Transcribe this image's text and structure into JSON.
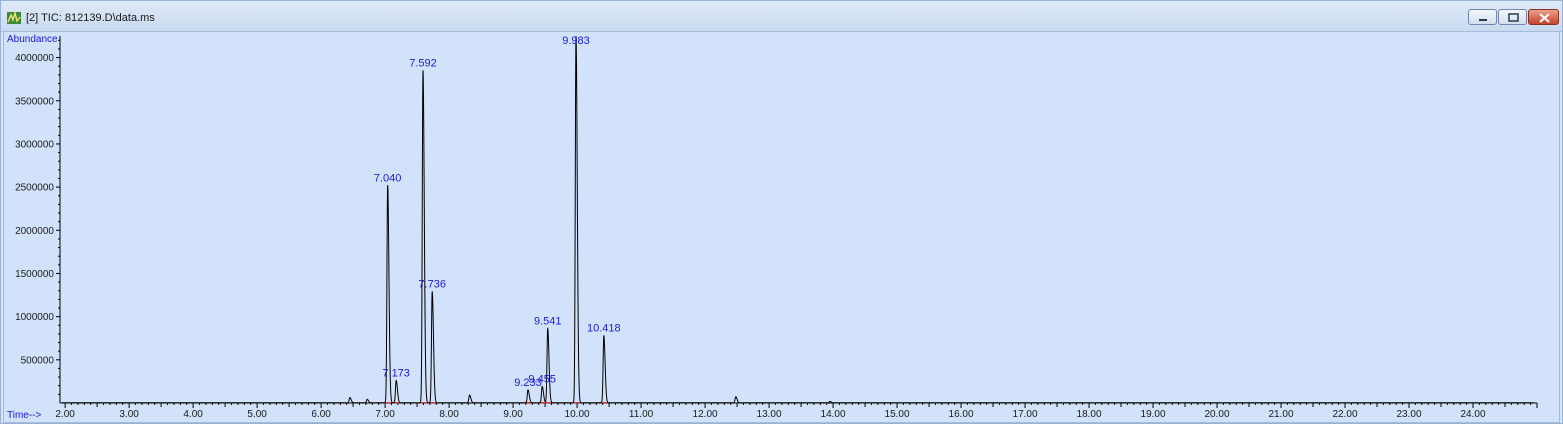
{
  "window": {
    "title": "[2] TIC: 812139.D\\data.ms",
    "icons": {
      "app": "chromatogram-app-icon",
      "minimize": "minimize-icon",
      "maximize": "maximize-icon",
      "close": "close-icon"
    },
    "colors": {
      "plot_background": "#d1e2fa",
      "trace": "#000000",
      "peak_label": "#1b1bd6",
      "baseline_marker": "#e03030"
    }
  },
  "chart_data": {
    "type": "line",
    "ylabel": "Abundance",
    "xlabel": "Time-->",
    "xlim": [
      1.92,
      25.0
    ],
    "ylim": [
      0,
      4250000
    ],
    "x_ticks": [
      "2.00",
      "3.00",
      "4.00",
      "5.00",
      "6.00",
      "7.00",
      "8.00",
      "9.00",
      "10.00",
      "11.00",
      "12.00",
      "13.00",
      "14.00",
      "15.00",
      "16.00",
      "17.00",
      "18.00",
      "19.00",
      "20.00",
      "21.00",
      "22.00",
      "23.00",
      "24.00"
    ],
    "y_ticks": [
      "500000",
      "1000000",
      "1500000",
      "2000000",
      "2500000",
      "3000000",
      "3500000",
      "4000000"
    ],
    "peaks": [
      {
        "label": "7.040",
        "time": 7.04,
        "abundance": 2520000
      },
      {
        "label": "7.173",
        "time": 7.173,
        "abundance": 260000
      },
      {
        "label": "7.592",
        "time": 7.592,
        "abundance": 3850000
      },
      {
        "label": "7.736",
        "time": 7.736,
        "abundance": 1290000
      },
      {
        "label": "9.233",
        "time": 9.233,
        "abundance": 150000
      },
      {
        "label": "9.455",
        "time": 9.455,
        "abundance": 190000
      },
      {
        "label": "9.541",
        "time": 9.541,
        "abundance": 860000
      },
      {
        "label": "9.983",
        "time": 9.983,
        "abundance": 4250000
      },
      {
        "label": "10.418",
        "time": 10.418,
        "abundance": 780000
      }
    ],
    "minor_peaks": [
      {
        "time": 6.45,
        "abundance": 60000
      },
      {
        "time": 6.72,
        "abundance": 40000
      },
      {
        "time": 8.32,
        "abundance": 90000
      },
      {
        "time": 12.48,
        "abundance": 70000
      },
      {
        "time": 13.95,
        "abundance": 15000
      }
    ]
  }
}
